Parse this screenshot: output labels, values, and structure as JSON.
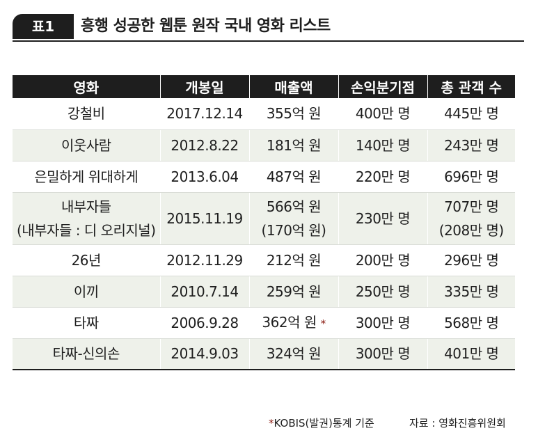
{
  "title": {
    "badge": "표1",
    "text": "흥행 성공한 웹툰 원작 국내 영화 리스트"
  },
  "table": {
    "headers": [
      "영화",
      "개봉일",
      "매출액",
      "손익분기점",
      "총 관객 수"
    ],
    "rows": [
      {
        "film": "강철비",
        "release": "2017.12.14",
        "revenue": "355억 원",
        "breakeven": "400만 명",
        "audience": "445만 명"
      },
      {
        "film": "이웃사람",
        "release": "2012.8.22",
        "revenue": "181억 원",
        "breakeven": "140만 명",
        "audience": "243만 명"
      },
      {
        "film": "은밀하게 위대하게",
        "release": "2013.6.04",
        "revenue": "487억 원",
        "breakeven": "220만 명",
        "audience": "696만 명"
      },
      {
        "film": "내부자들",
        "film_sub": "(내부자들 : 디 오리지널)",
        "release": "2015.11.19",
        "revenue": "566억 원",
        "revenue_sub": "(170억 원)",
        "breakeven": "230만 명",
        "audience": "707만 명",
        "audience_sub": "(208만 명)"
      },
      {
        "film": "26년",
        "release": "2012.11.29",
        "revenue": "212억 원",
        "breakeven": "200만 명",
        "audience": "296만 명"
      },
      {
        "film": "이끼",
        "release": "2010.7.14",
        "revenue": "259억 원",
        "breakeven": "250만 명",
        "audience": "335만 명"
      },
      {
        "film": "타짜",
        "release": "2006.9.28",
        "revenue": "362억 원",
        "revenue_mark": "*",
        "breakeven": "300만 명",
        "audience": "568만 명"
      },
      {
        "film": "타짜-신의손",
        "release": "2014.9.03",
        "revenue": "324억 원",
        "breakeven": "300만 명",
        "audience": "401만 명"
      }
    ]
  },
  "footer": {
    "note_mark": "*",
    "note": "KOBIS(발권)통계 기준",
    "source": "자료 : 영화진흥위원회"
  },
  "colors": {
    "header_bg": "#1e1e1e",
    "row_tint": "#eef1ea",
    "star": "#8a1a10"
  }
}
